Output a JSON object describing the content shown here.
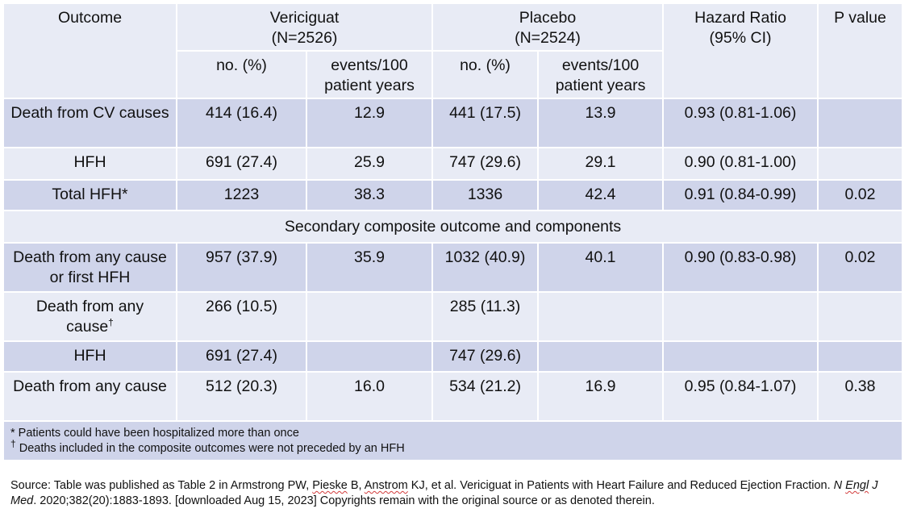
{
  "header": {
    "outcome": "Outcome",
    "vericiguat": "Vericiguat",
    "vericiguat_n": "(N=2526)",
    "placebo": "Placebo",
    "placebo_n": "(N=2524)",
    "hazard_ratio": "Hazard Ratio",
    "hazard_ci": "(95% CI)",
    "p_value": "P value",
    "no_pct": "no. (%)",
    "events_line1": "events/100",
    "events_line2": "patient years"
  },
  "rows_primary": [
    {
      "outcome": "Death from CV causes",
      "v_no": "414 (16.4)",
      "v_events": "12.9",
      "p_no": "441 (17.5)",
      "p_events": "13.9",
      "hr": "0.93 (0.81-1.06)",
      "p": ""
    },
    {
      "outcome": "HFH",
      "v_no": "691 (27.4)",
      "v_events": "25.9",
      "p_no": "747 (29.6)",
      "p_events": "29.1",
      "hr": "0.90 (0.81-1.00)",
      "p": ""
    },
    {
      "outcome": "Total HFH*",
      "v_no": "1223",
      "v_events": "38.3",
      "p_no": "1336",
      "p_events": "42.4",
      "hr": "0.91 (0.84-0.99)",
      "p": "0.02"
    }
  ],
  "section_title": "Secondary composite outcome and components",
  "rows_secondary": [
    {
      "outcome": "Death from any cause or first HFH",
      "v_no": "957 (37.9)",
      "v_events": "35.9",
      "p_no": "1032 (40.9)",
      "p_events": "40.1",
      "hr": "0.90 (0.83-0.98)",
      "p": "0.02"
    },
    {
      "outcome": "Death from any cause",
      "outcome_mark": "†",
      "v_no": "266 (10.5)",
      "v_events": "",
      "p_no": "285 (11.3)",
      "p_events": "",
      "hr": "",
      "p": ""
    },
    {
      "outcome": "HFH",
      "v_no": "691 (27.4)",
      "v_events": "",
      "p_no": "747 (29.6)",
      "p_events": "",
      "hr": "",
      "p": ""
    },
    {
      "outcome": "Death from any cause",
      "v_no": "512 (20.3)",
      "v_events": "16.0",
      "p_no": "534 (21.2)",
      "p_events": "16.9",
      "hr": "0.95 (0.84-1.07)",
      "p": "0.38"
    }
  ],
  "footnotes": {
    "star": "* Patients could have been hospitalized more than once",
    "dagger_mark": "†",
    "dagger": " Deaths included in the composite outcomes were not preceded by an HFH"
  },
  "source": {
    "part1": "Source: Table was published as Table 2 in Armstrong PW, ",
    "pieske": "Pieske",
    "part2": " B, ",
    "anstrom": "Anstrom",
    "part3": " KJ, et al. Vericiguat in Patients with Heart Failure and Reduced Ejection Fraction. ",
    "journal_a": "N ",
    "journal_engl": "Engl",
    "journal_b": " J Med",
    "part4": ". 2020;382(20):1883-1893. [downloaded Aug 15, 2023] Copyrights remain with the original source or as denoted therein."
  }
}
